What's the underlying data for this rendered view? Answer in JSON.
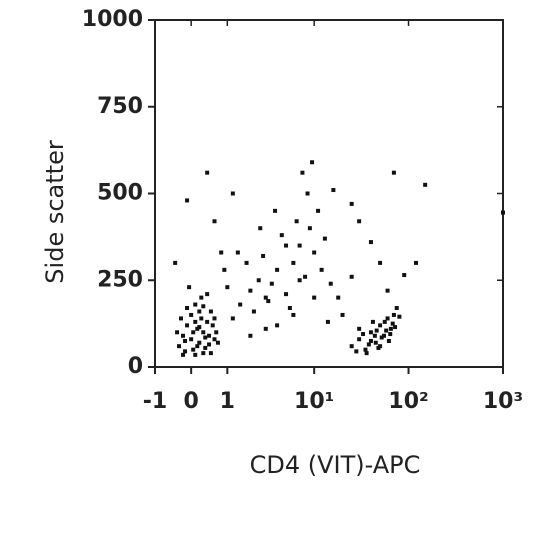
{
  "chart_data": {
    "type": "scatter",
    "x_label": "CD4 (VIT)-APC",
    "y_label": "Side scatter",
    "xscale": "asinh",
    "color": "#111111",
    "xlim": [
      -1,
      1000
    ],
    "ylim": [
      0,
      1000
    ],
    "xticks": [
      -1,
      0,
      1,
      {
        "value": 10,
        "label": "10¹"
      },
      {
        "value": 100,
        "label": "10²"
      },
      {
        "value": 1000,
        "label": "10³"
      }
    ],
    "yticks": [
      0,
      250,
      500,
      750,
      1000
    ],
    "x": [
      -0.3,
      -0.2,
      -0.1,
      0,
      0.1,
      0.2,
      0.3,
      0.4,
      0.5,
      0.6,
      -0.25,
      -0.15,
      0.05,
      0.15,
      0.25,
      0.35,
      0.45,
      0.55,
      0.7,
      -0.35,
      0,
      0.1,
      0.2,
      -0.1,
      0.3,
      0.4,
      0.05,
      0.15,
      0.25,
      0.35,
      -0.2,
      0.5,
      0.6,
      0.65,
      -0.05,
      0.1,
      0.2,
      0.3,
      0.45,
      -0.15,
      25,
      30,
      35,
      40,
      45,
      50,
      55,
      60,
      65,
      70,
      28,
      33,
      38,
      42,
      48,
      52,
      58,
      62,
      68,
      75,
      30,
      36,
      44,
      50,
      56,
      64,
      72,
      80,
      40,
      46,
      1.5,
      2,
      2.5,
      3,
      3.5,
      4,
      5,
      6,
      7,
      8,
      1.2,
      1.8,
      2.2,
      2.8,
      3.2,
      4.5,
      5.5,
      6.5,
      9,
      10,
      12,
      15,
      11,
      8.5,
      7.5,
      9.5,
      4,
      3,
      2,
      6,
      13,
      18,
      20,
      25,
      1,
      1.4,
      2.6,
      3.8,
      5,
      7,
      10,
      14,
      16,
      0.9,
      30,
      0.4,
      70,
      150,
      1000,
      -0.1,
      0.6,
      120,
      90,
      40,
      25,
      50,
      1.2,
      0.8,
      -0.4,
      60
    ],
    "values": [
      60,
      90,
      120,
      150,
      180,
      70,
      100,
      130,
      160,
      80,
      140,
      45,
      50,
      110,
      200,
      55,
      90,
      120,
      70,
      100,
      80,
      130,
      160,
      170,
      40,
      210,
      100,
      60,
      140,
      85,
      35,
      40,
      140,
      100,
      230,
      35,
      115,
      175,
      65,
      75,
      60,
      80,
      50,
      100,
      70,
      120,
      90,
      140,
      110,
      150,
      45,
      95,
      65,
      130,
      55,
      85,
      105,
      75,
      125,
      170,
      110,
      40,
      90,
      60,
      130,
      95,
      115,
      145,
      75,
      105,
      180,
      220,
      250,
      200,
      240,
      280,
      210,
      300,
      350,
      260,
      140,
      300,
      160,
      320,
      190,
      380,
      170,
      420,
      400,
      330,
      280,
      240,
      450,
      500,
      560,
      590,
      120,
      110,
      90,
      150,
      370,
      200,
      150,
      260,
      230,
      330,
      400,
      450,
      350,
      250,
      200,
      130,
      510,
      280,
      420,
      560,
      560,
      525,
      445,
      480,
      420,
      300,
      265,
      360,
      470,
      300,
      500,
      330,
      300,
      220
    ]
  }
}
